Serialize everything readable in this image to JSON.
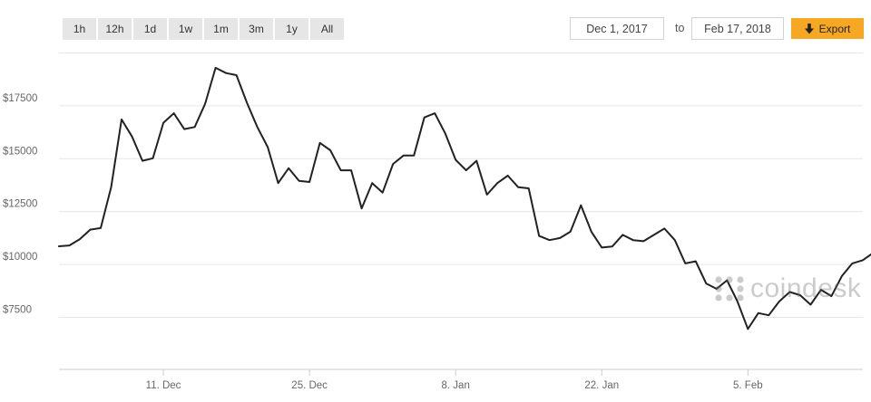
{
  "range_buttons": [
    "1h",
    "12h",
    "1d",
    "1w",
    "1m",
    "3m",
    "1y",
    "All"
  ],
  "date_from": "Dec 1, 2017",
  "date_to_label": "to",
  "date_to": "Feb 17, 2018",
  "export_label": "Export",
  "accent_color": "#f7a823",
  "watermark": "coindesk",
  "chart_data": {
    "type": "line",
    "xlabel": "",
    "ylabel": "",
    "x_start": "2017-12-01",
    "x_end": "2018-02-17",
    "ylim": [
      5000,
      20000
    ],
    "y_ticks": [
      7500,
      10000,
      12500,
      15000,
      17500
    ],
    "y_tick_labels": [
      "$7500",
      "$10000",
      "$12500",
      "$15000",
      "$17500"
    ],
    "x_ticks": [
      "2017-12-11",
      "2017-12-25",
      "2018-01-08",
      "2018-01-22",
      "2018-02-05"
    ],
    "x_tick_labels": [
      "11. Dec",
      "25. Dec",
      "8. Jan",
      "22. Jan",
      "5. Feb"
    ],
    "grid": true,
    "series": [
      {
        "color": "#222222",
        "points": [
          [
            "2017-12-01",
            10860
          ],
          [
            "2017-12-02",
            10900
          ],
          [
            "2017-12-03",
            11200
          ],
          [
            "2017-12-04",
            11650
          ],
          [
            "2017-12-05",
            11720
          ],
          [
            "2017-12-06",
            13650
          ],
          [
            "2017-12-07",
            16860
          ],
          [
            "2017-12-08",
            16050
          ],
          [
            "2017-12-09",
            14900
          ],
          [
            "2017-12-10",
            15020
          ],
          [
            "2017-12-11",
            16700
          ],
          [
            "2017-12-12",
            17150
          ],
          [
            "2017-12-13",
            16400
          ],
          [
            "2017-12-14",
            16500
          ],
          [
            "2017-12-15",
            17600
          ],
          [
            "2017-12-16",
            19300
          ],
          [
            "2017-12-17",
            19050
          ],
          [
            "2017-12-18",
            18950
          ],
          [
            "2017-12-19",
            17650
          ],
          [
            "2017-12-20",
            16500
          ],
          [
            "2017-12-21",
            15550
          ],
          [
            "2017-12-22",
            13850
          ],
          [
            "2017-12-23",
            14550
          ],
          [
            "2017-12-24",
            13950
          ],
          [
            "2017-12-25",
            13900
          ],
          [
            "2017-12-26",
            15750
          ],
          [
            "2017-12-27",
            15400
          ],
          [
            "2017-12-28",
            14450
          ],
          [
            "2017-12-29",
            14450
          ],
          [
            "2017-12-30",
            12650
          ],
          [
            "2017-12-31",
            13850
          ],
          [
            "2018-01-01",
            13400
          ],
          [
            "2018-01-02",
            14750
          ],
          [
            "2018-01-03",
            15150
          ],
          [
            "2018-01-04",
            15150
          ],
          [
            "2018-01-05",
            16950
          ],
          [
            "2018-01-06",
            17150
          ],
          [
            "2018-01-07",
            16200
          ],
          [
            "2018-01-08",
            14950
          ],
          [
            "2018-01-09",
            14450
          ],
          [
            "2018-01-10",
            14900
          ],
          [
            "2018-01-11",
            13300
          ],
          [
            "2018-01-12",
            13850
          ],
          [
            "2018-01-13",
            14200
          ],
          [
            "2018-01-14",
            13650
          ],
          [
            "2018-01-15",
            13600
          ],
          [
            "2018-01-16",
            11350
          ],
          [
            "2018-01-17",
            11150
          ],
          [
            "2018-01-18",
            11250
          ],
          [
            "2018-01-19",
            11550
          ],
          [
            "2018-01-20",
            12800
          ],
          [
            "2018-01-21",
            11550
          ],
          [
            "2018-01-22",
            10800
          ],
          [
            "2018-01-23",
            10850
          ],
          [
            "2018-01-24",
            11400
          ],
          [
            "2018-01-25",
            11150
          ],
          [
            "2018-01-26",
            11100
          ],
          [
            "2018-01-27",
            11400
          ],
          [
            "2018-01-28",
            11700
          ],
          [
            "2018-01-29",
            11150
          ],
          [
            "2018-01-30",
            10050
          ],
          [
            "2018-01-31",
            10150
          ],
          [
            "2018-02-01",
            9100
          ],
          [
            "2018-02-02",
            8850
          ],
          [
            "2018-02-03",
            9250
          ],
          [
            "2018-02-04",
            8250
          ],
          [
            "2018-02-05",
            6950
          ],
          [
            "2018-02-06",
            7700
          ],
          [
            "2018-02-07",
            7600
          ],
          [
            "2018-02-08",
            8250
          ],
          [
            "2018-02-09",
            8700
          ],
          [
            "2018-02-10",
            8550
          ],
          [
            "2018-02-11",
            8100
          ],
          [
            "2018-02-12",
            8800
          ],
          [
            "2018-02-13",
            8500
          ],
          [
            "2018-02-14",
            9450
          ],
          [
            "2018-02-15",
            10050
          ],
          [
            "2018-02-16",
            10200
          ],
          [
            "2018-02-17",
            10550
          ]
        ]
      }
    ]
  }
}
